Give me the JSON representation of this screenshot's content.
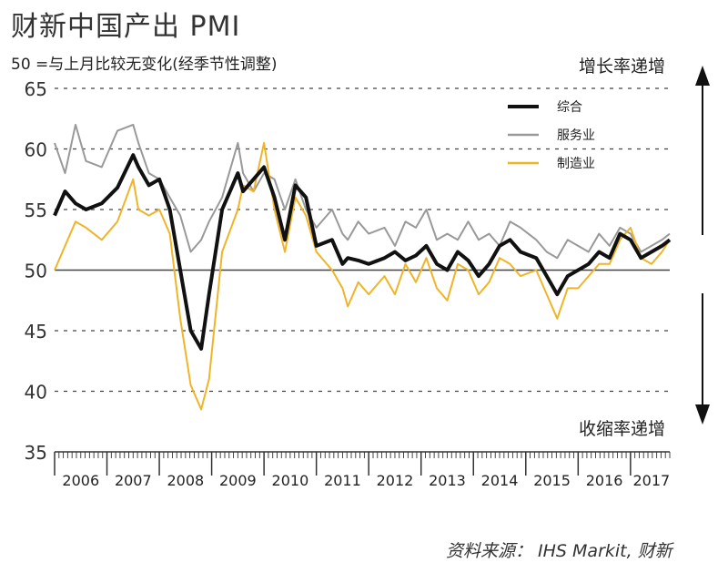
{
  "title": "财新中国产出 PMI",
  "subtitle": "50 =与上月比较无变化(经季节性调整)",
  "annotations": {
    "up": "增长率递增",
    "down": "收缩率递增"
  },
  "source": "资料来源：  IHS Markit, 财新",
  "colors": {
    "composite": "#111111",
    "services": "#999999",
    "manufacturing": "#f0b428",
    "grid": "#444444"
  },
  "chart_data": {
    "type": "line",
    "ylim": [
      35,
      65
    ],
    "yticks": [
      35,
      40,
      45,
      50,
      55,
      60,
      65
    ],
    "xlim": [
      2006.0,
      2017.75
    ],
    "xtick_labels": [
      "2006",
      "2007",
      "2008",
      "2009",
      "2010",
      "2011",
      "2012",
      "2013",
      "2014",
      "2015",
      "2016",
      "2017"
    ],
    "grid": "dashed horizontal",
    "legend_position": "top-right",
    "series": [
      {
        "name": "综合",
        "color_key": "composite",
        "x": [
          2006.0,
          2006.2,
          2006.4,
          2006.6,
          2006.9,
          2007.2,
          2007.5,
          2007.6,
          2007.8,
          2008.0,
          2008.2,
          2008.4,
          2008.6,
          2008.8,
          2008.95,
          2009.2,
          2009.5,
          2009.6,
          2009.8,
          2010.0,
          2010.2,
          2010.4,
          2010.6,
          2010.8,
          2011.0,
          2011.3,
          2011.5,
          2011.6,
          2011.8,
          2012.0,
          2012.3,
          2012.5,
          2012.7,
          2012.9,
          2013.1,
          2013.3,
          2013.5,
          2013.7,
          2013.9,
          2014.1,
          2014.3,
          2014.5,
          2014.7,
          2014.9,
          2015.2,
          2015.4,
          2015.6,
          2015.8,
          2016.0,
          2016.2,
          2016.4,
          2016.6,
          2016.8,
          2017.0,
          2017.2,
          2017.4,
          2017.6,
          2017.75
        ],
        "y": [
          54.5,
          56.5,
          55.5,
          55.0,
          55.5,
          56.8,
          59.5,
          58.5,
          57.0,
          57.5,
          55.0,
          50.0,
          45.0,
          43.5,
          48.0,
          55.0,
          58.0,
          56.5,
          57.5,
          58.5,
          56.0,
          52.5,
          57.0,
          56.0,
          52.0,
          52.5,
          50.5,
          51.0,
          50.8,
          50.5,
          51.0,
          51.5,
          50.8,
          51.2,
          52.0,
          50.5,
          50.0,
          51.5,
          50.8,
          49.5,
          50.5,
          52.0,
          52.5,
          51.5,
          51.0,
          49.5,
          48.0,
          49.5,
          50.0,
          50.5,
          51.5,
          51.0,
          53.0,
          52.5,
          51.0,
          51.5,
          52.0,
          52.5
        ]
      },
      {
        "name": "服务业",
        "color_key": "services",
        "x": [
          2006.0,
          2006.2,
          2006.4,
          2006.6,
          2006.9,
          2007.2,
          2007.5,
          2007.6,
          2007.8,
          2008.0,
          2008.2,
          2008.4,
          2008.6,
          2008.8,
          2008.95,
          2009.2,
          2009.5,
          2009.6,
          2009.8,
          2010.0,
          2010.2,
          2010.4,
          2010.6,
          2010.8,
          2011.0,
          2011.3,
          2011.5,
          2011.6,
          2011.8,
          2012.0,
          2012.3,
          2012.5,
          2012.7,
          2012.9,
          2013.1,
          2013.3,
          2013.5,
          2013.7,
          2013.9,
          2014.1,
          2014.3,
          2014.5,
          2014.7,
          2014.9,
          2015.2,
          2015.4,
          2015.6,
          2015.8,
          2016.0,
          2016.2,
          2016.4,
          2016.6,
          2016.8,
          2017.0,
          2017.2,
          2017.4,
          2017.6,
          2017.75
        ],
        "y": [
          60.5,
          58.0,
          62.0,
          59.0,
          58.5,
          61.5,
          62.0,
          60.5,
          58.0,
          57.5,
          56.0,
          54.5,
          51.5,
          52.5,
          54.0,
          56.0,
          60.5,
          58.0,
          56.5,
          58.0,
          57.5,
          55.0,
          57.5,
          55.0,
          53.5,
          55.0,
          53.0,
          52.5,
          54.0,
          53.0,
          53.5,
          52.0,
          54.0,
          53.5,
          55.0,
          52.5,
          53.0,
          52.5,
          54.0,
          52.5,
          53.0,
          52.0,
          54.0,
          53.5,
          52.5,
          51.5,
          51.0,
          52.5,
          52.0,
          51.5,
          53.0,
          52.0,
          53.5,
          53.0,
          51.5,
          52.0,
          52.5,
          53.0
        ]
      },
      {
        "name": "制造业",
        "color_key": "manufacturing",
        "x": [
          2006.0,
          2006.2,
          2006.4,
          2006.6,
          2006.9,
          2007.2,
          2007.5,
          2007.6,
          2007.8,
          2008.0,
          2008.2,
          2008.4,
          2008.6,
          2008.8,
          2008.95,
          2009.2,
          2009.5,
          2009.6,
          2009.8,
          2010.0,
          2010.2,
          2010.4,
          2010.6,
          2010.8,
          2011.0,
          2011.3,
          2011.5,
          2011.6,
          2011.8,
          2012.0,
          2012.3,
          2012.5,
          2012.7,
          2012.9,
          2013.1,
          2013.3,
          2013.5,
          2013.7,
          2013.9,
          2014.1,
          2014.3,
          2014.5,
          2014.7,
          2014.9,
          2015.2,
          2015.4,
          2015.6,
          2015.8,
          2016.0,
          2016.2,
          2016.4,
          2016.6,
          2016.8,
          2017.0,
          2017.2,
          2017.4,
          2017.6,
          2017.75
        ],
        "y": [
          50.0,
          52.0,
          54.0,
          53.5,
          52.5,
          54.0,
          57.5,
          55.0,
          54.5,
          55.0,
          53.0,
          46.0,
          40.5,
          38.5,
          41.0,
          51.5,
          55.0,
          57.0,
          56.5,
          60.5,
          55.0,
          51.5,
          56.0,
          54.5,
          51.5,
          50.0,
          48.5,
          47.0,
          49.0,
          48.0,
          49.5,
          48.0,
          50.5,
          49.0,
          51.0,
          48.5,
          47.5,
          50.5,
          50.0,
          48.0,
          49.0,
          51.0,
          50.5,
          49.5,
          50.0,
          48.0,
          46.0,
          48.5,
          48.5,
          49.5,
          50.5,
          50.5,
          52.5,
          53.5,
          51.0,
          50.5,
          51.5,
          52.5
        ]
      }
    ]
  }
}
